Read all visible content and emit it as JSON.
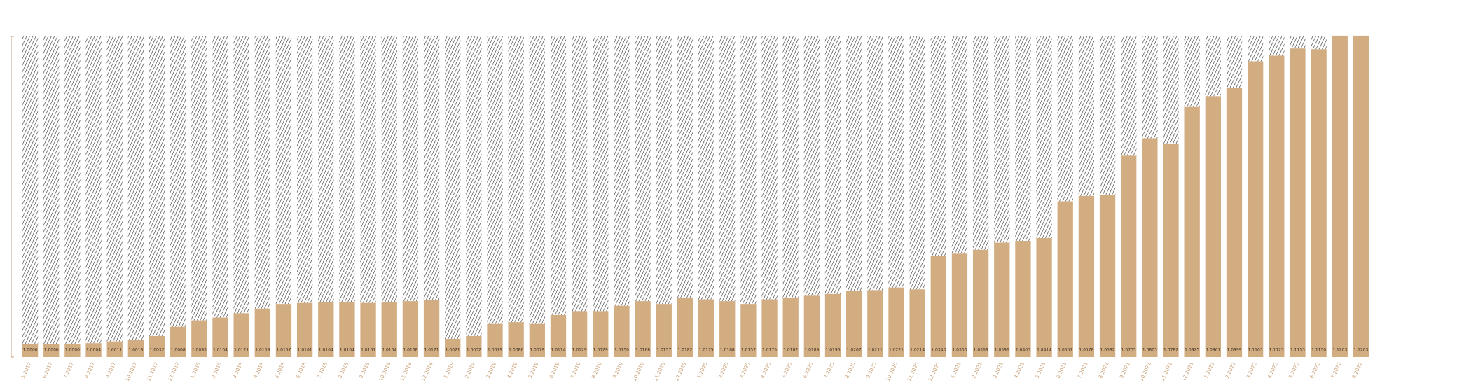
{
  "chart_data": {
    "type": "bar",
    "color": "#d2ad82",
    "remainder_color": "#2b2b2b",
    "categories": [
      "5.2017",
      "6.2017",
      "7.2017",
      "8.2017",
      "9.2017",
      "10.2017",
      "11.2017",
      "12.2017",
      "1.2018",
      "2.2018",
      "3.2018",
      "4.2018",
      "5.2018",
      "6.2018",
      "7.2018",
      "8.2018",
      "9.2018",
      "10.2018",
      "11.2018",
      "12.2018",
      "1.2019",
      "2.2019",
      "3.2019",
      "4.2019",
      "5.2019",
      "6.2019",
      "7.2019",
      "8.2019",
      "9.2019",
      "10.2019",
      "11.2019",
      "12.2019",
      "1.2020",
      "2.2020",
      "3.2020",
      "4.2020",
      "5.2020",
      "6.2020",
      "7.2020",
      "8.2020",
      "9.2020",
      "10.2020",
      "11.2020",
      "12.2020",
      "1.2021",
      "2.2021",
      "3.2021",
      "4.2021",
      "5.2021",
      "6.2021",
      "7.2021",
      "8.2021",
      "9.2021",
      "10.2021",
      "11.2021",
      "12.2021",
      "1.2022",
      "2.2022",
      "3.2022",
      "4.2022",
      "5.2022",
      "6.2022",
      "7.2022",
      "8.2022"
    ],
    "values": [
      1.0,
      1.0,
      1.0,
      1.0004,
      1.0011,
      1.0018,
      1.0032,
      1.0068,
      1.0093,
      1.0104,
      1.0121,
      1.0139,
      1.0157,
      1.0161,
      1.0164,
      1.0164,
      1.0161,
      1.0164,
      1.0168,
      1.0171,
      1.0021,
      1.0032,
      1.0079,
      1.0086,
      1.0079,
      1.0114,
      1.0129,
      1.0129,
      1.015,
      1.0168,
      1.0157,
      1.0182,
      1.0175,
      1.0168,
      1.0157,
      1.0175,
      1.0182,
      1.0189,
      1.0196,
      1.0207,
      1.0211,
      1.0221,
      1.0214,
      1.0343,
      1.0353,
      1.0368,
      1.0396,
      1.0403,
      1.0414,
      1.0557,
      1.0578,
      1.0582,
      1.0735,
      1.0803,
      1.0782,
      1.0925,
      1.0967,
      1.0999,
      1.1103,
      1.1125,
      1.1153,
      1.115,
      1.1203,
      1.1203
    ],
    "value_labels": [
      "1.0000",
      "1.0000",
      "1.0000",
      "1.0004",
      "1.0011",
      "1.0018",
      "1.0032",
      "1.0068",
      "1.0093",
      "1.0104",
      "1.0121",
      "1.0139",
      "1.0157",
      "1.0161",
      "1.0164",
      "1.0164",
      "1.0161",
      "1.0164",
      "1.0168",
      "1.0171",
      "1.0021",
      "1.0032",
      "1.0079",
      "1.0086",
      "1.0079",
      "1.0114",
      "1.0129",
      "1.0129",
      "1.0150",
      "1.0168",
      "1.0157",
      "1.0182",
      "1.0175",
      "1.0168",
      "1.0157",
      "1.0175",
      "1.0182",
      "1.0189",
      "1.0196",
      "1.0207",
      "1.0211",
      "1.0221",
      "1.0214",
      "1.0343",
      "1.0353",
      "1.0368",
      "1.0396",
      "1.0403",
      "1.0414",
      "1.0557",
      "1.0578",
      "1.0582",
      "1.0735",
      "1.0803",
      "1.0782",
      "1.0925",
      "1.0967",
      "1.0999",
      "1.1103",
      "1.1125",
      "1.1153",
      "1.1150",
      "1.1203",
      "1.1203"
    ],
    "ylim": [
      0.995,
      1.12
    ]
  }
}
